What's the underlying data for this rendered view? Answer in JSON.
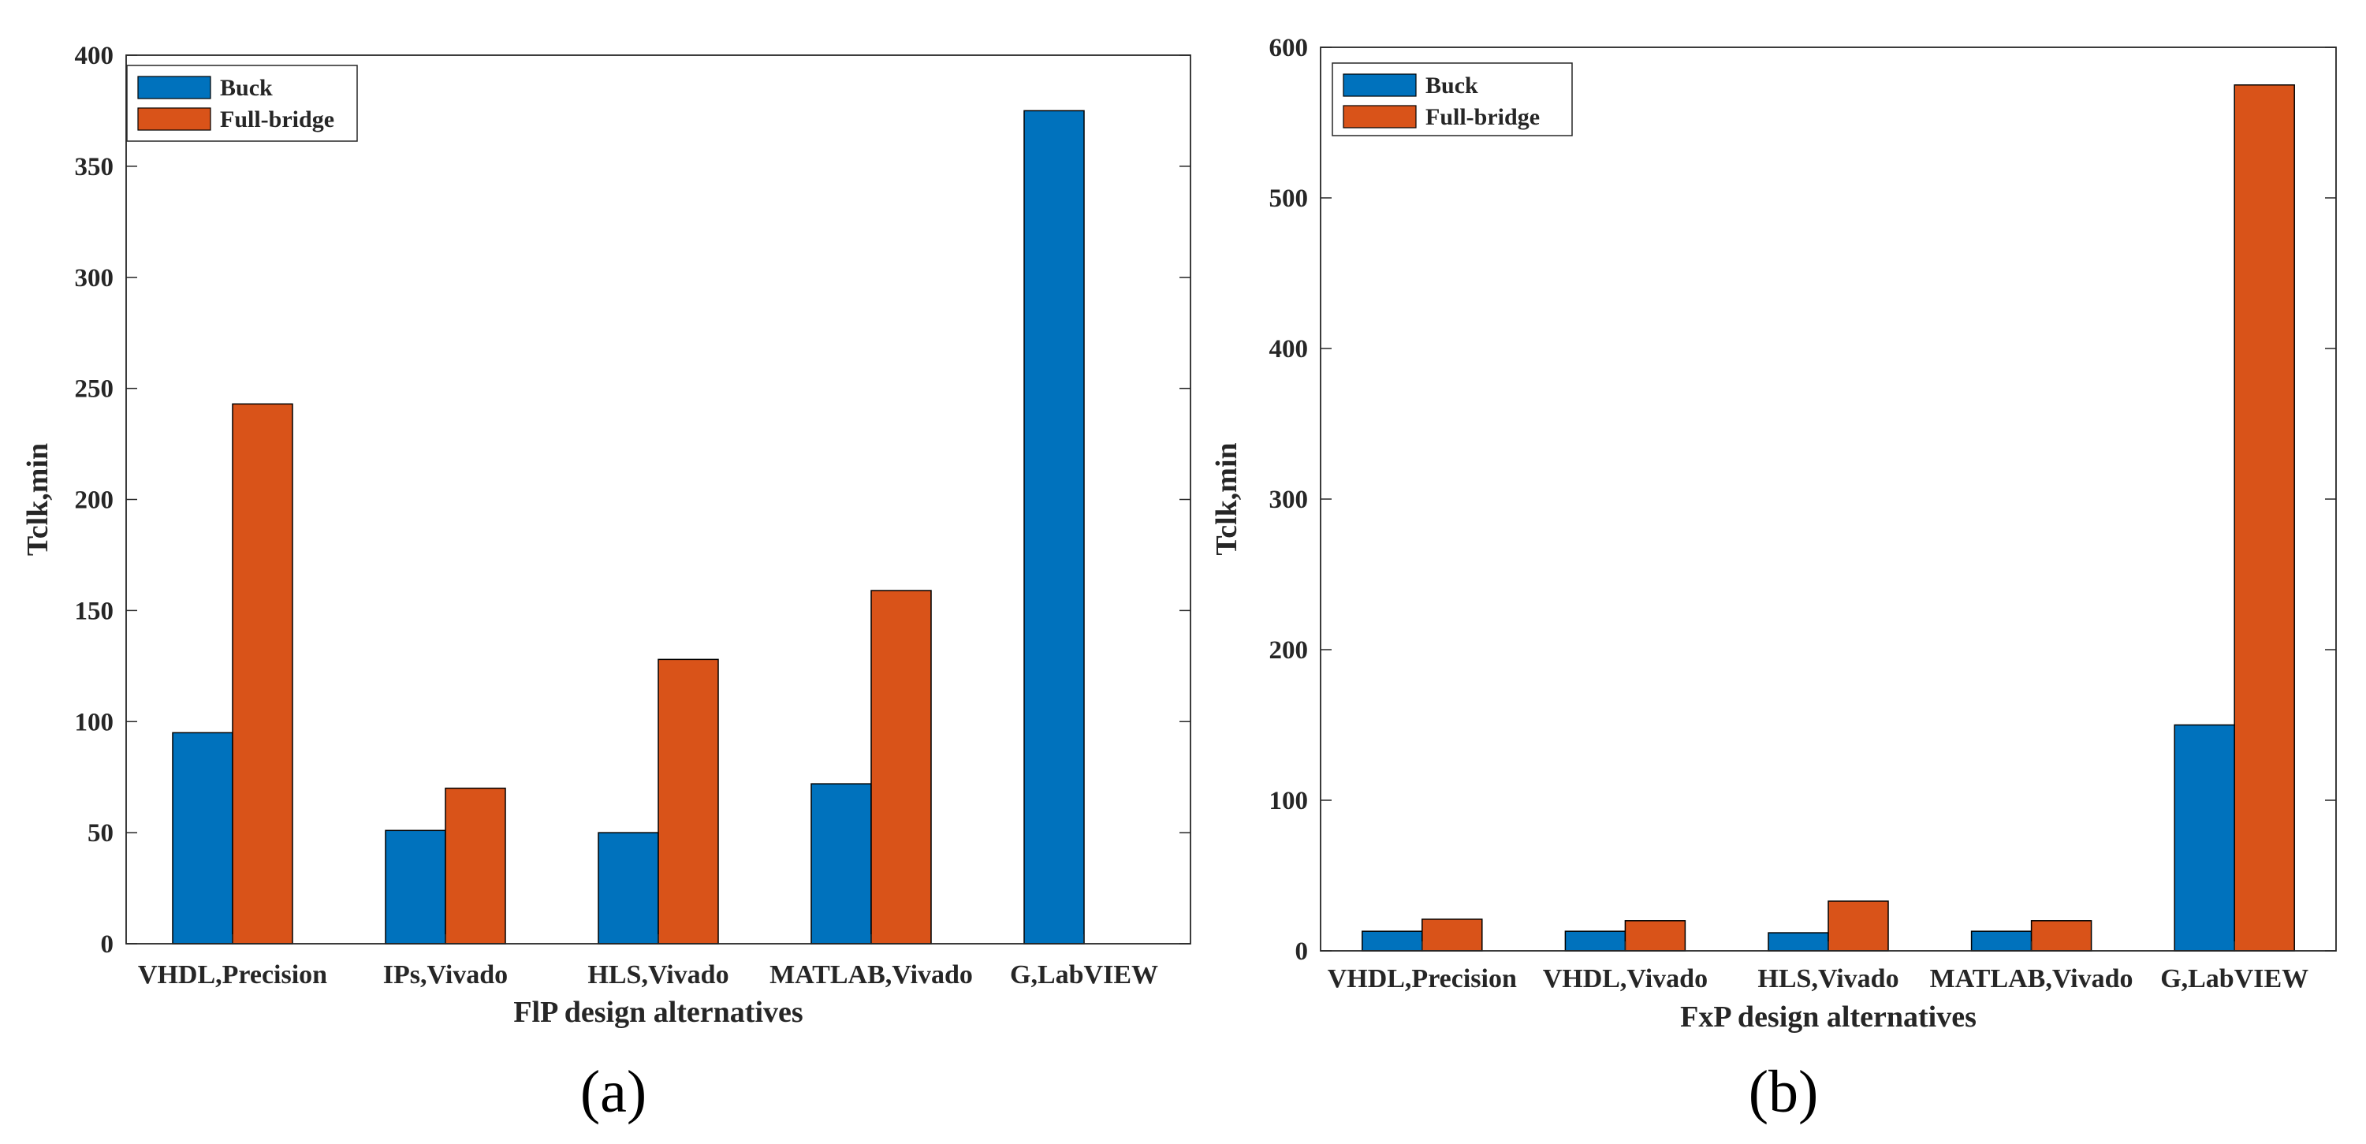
{
  "colors": {
    "buck": "#0072BD",
    "full_bridge": "#D95319",
    "axis": "#262626",
    "background": "#FFFFFF"
  },
  "chart_data": [
    {
      "type": "bar",
      "panel_label": "(a)",
      "title": "",
      "xlabel": "FlP design alternatives",
      "ylabel": "Tclk,min",
      "ylim": [
        0,
        400
      ],
      "yticks": [
        0,
        50,
        100,
        150,
        200,
        250,
        300,
        350,
        400
      ],
      "categories": [
        "VHDL,Precision",
        "IPs,Vivado",
        "HLS,Vivado",
        "MATLAB,Vivado",
        "G,LabVIEW"
      ],
      "series": [
        {
          "name": "Buck",
          "color": "#0072BD",
          "values": [
            95,
            51,
            50,
            72,
            375
          ]
        },
        {
          "name": "Full-bridge",
          "color": "#D95319",
          "values": [
            243,
            70,
            128,
            159,
            null
          ]
        }
      ],
      "legend": {
        "position": "top-left",
        "entries": [
          "Buck",
          "Full-bridge"
        ]
      },
      "grid": false
    },
    {
      "type": "bar",
      "panel_label": "(b)",
      "title": "",
      "xlabel": "FxP design alternatives",
      "ylabel": "Tclk,min",
      "ylim": [
        0,
        600
      ],
      "yticks": [
        0,
        100,
        200,
        300,
        400,
        500,
        600
      ],
      "categories": [
        "VHDL,Precision",
        "VHDL,Vivado",
        "HLS,Vivado",
        "MATLAB,Vivado",
        "G,LabVIEW"
      ],
      "series": [
        {
          "name": "Buck",
          "color": "#0072BD",
          "values": [
            13,
            13,
            12,
            13,
            150
          ]
        },
        {
          "name": "Full-bridge",
          "color": "#D95319",
          "values": [
            21,
            20,
            33,
            20,
            575
          ]
        }
      ],
      "legend": {
        "position": "top-left",
        "entries": [
          "Buck",
          "Full-bridge"
        ]
      },
      "grid": false
    }
  ]
}
